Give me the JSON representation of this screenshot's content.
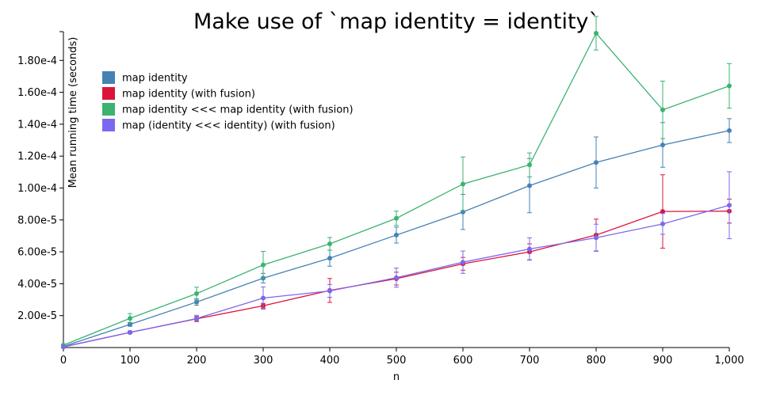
{
  "chart_data": {
    "type": "line",
    "title": "Make use of `map identity = identity`",
    "xlabel": "n",
    "ylabel": "Mean running time (seconds)",
    "xlim": [
      0,
      1000
    ],
    "ylim": [
      0,
      0.000198
    ],
    "x_ticks": [
      0,
      100,
      200,
      300,
      400,
      500,
      600,
      700,
      800,
      900,
      1000
    ],
    "x_tick_labels": [
      "0",
      "100",
      "200",
      "300",
      "400",
      "500",
      "600",
      "700",
      "800",
      "900",
      "1,000"
    ],
    "y_ticks": [
      2e-05,
      4e-05,
      6e-05,
      8e-05,
      0.0001,
      0.00012,
      0.00014,
      0.00016,
      0.00018
    ],
    "y_tick_labels": [
      "2.00e-5",
      "4.00e-5",
      "6.00e-5",
      "8.00e-5",
      "1.00e-4",
      "1.20e-4",
      "1.40e-4",
      "1.60e-4",
      "1.80e-4"
    ],
    "grid": false,
    "legend_position": "top-left",
    "x": [
      0,
      100,
      200,
      300,
      400,
      500,
      600,
      700,
      800,
      900,
      1000
    ],
    "series": [
      {
        "name": "map identity",
        "color": "#4682b4",
        "values": [
          7e-07,
          1.45e-05,
          2.85e-05,
          4.35e-05,
          5.6e-05,
          7.05e-05,
          8.5e-05,
          0.0001015,
          0.000116,
          0.000127,
          0.000136
        ],
        "errors": [
          3e-07,
          1.2e-06,
          2e-06,
          3e-06,
          5e-06,
          5e-06,
          1.1e-05,
          1.7e-05,
          1.6e-05,
          1.4e-05,
          7.5e-06
        ]
      },
      {
        "name": "map identity (with fusion)",
        "color": "#dc143c",
        "values": [
          4e-07,
          9.5e-06,
          1.8e-05,
          2.62e-05,
          3.58e-05,
          4.32e-05,
          5.25e-05,
          6e-05,
          7.05e-05,
          8.53e-05,
          8.55e-05
        ],
        "errors": [
          2e-07,
          8e-07,
          1.5e-06,
          1.5e-06,
          7.5e-06,
          4e-06,
          4e-06,
          5e-06,
          1e-05,
          2.3e-05,
          7.5e-06
        ]
      },
      {
        "name": "map identity <<< map identity (with fusion)",
        "color": "#3cb371",
        "values": [
          1.5e-06,
          1.83e-05,
          3.38e-05,
          5.18e-05,
          6.5e-05,
          8.1e-05,
          0.0001025,
          0.0001145,
          0.000197,
          0.000149,
          0.000164
        ],
        "errors": [
          5e-07,
          3e-06,
          4e-06,
          8.5e-06,
          4e-06,
          4.5e-06,
          1.7e-05,
          7.5e-06,
          1.05e-05,
          1.8e-05,
          1.4e-05
        ]
      },
      {
        "name": "map (identity <<< identity) (with fusion)",
        "color": "#7b68ee",
        "values": [
          4e-07,
          9.5e-06,
          1.82e-05,
          3.1e-05,
          3.55e-05,
          4.38e-05,
          5.35e-05,
          6.18e-05,
          6.88e-05,
          7.75e-05,
          8.92e-05
        ],
        "errors": [
          2e-07,
          8e-07,
          2e-06,
          7e-06,
          4e-06,
          6e-06,
          7e-06,
          7e-06,
          8.5e-06,
          6.5e-06,
          2.1e-05
        ]
      }
    ]
  }
}
